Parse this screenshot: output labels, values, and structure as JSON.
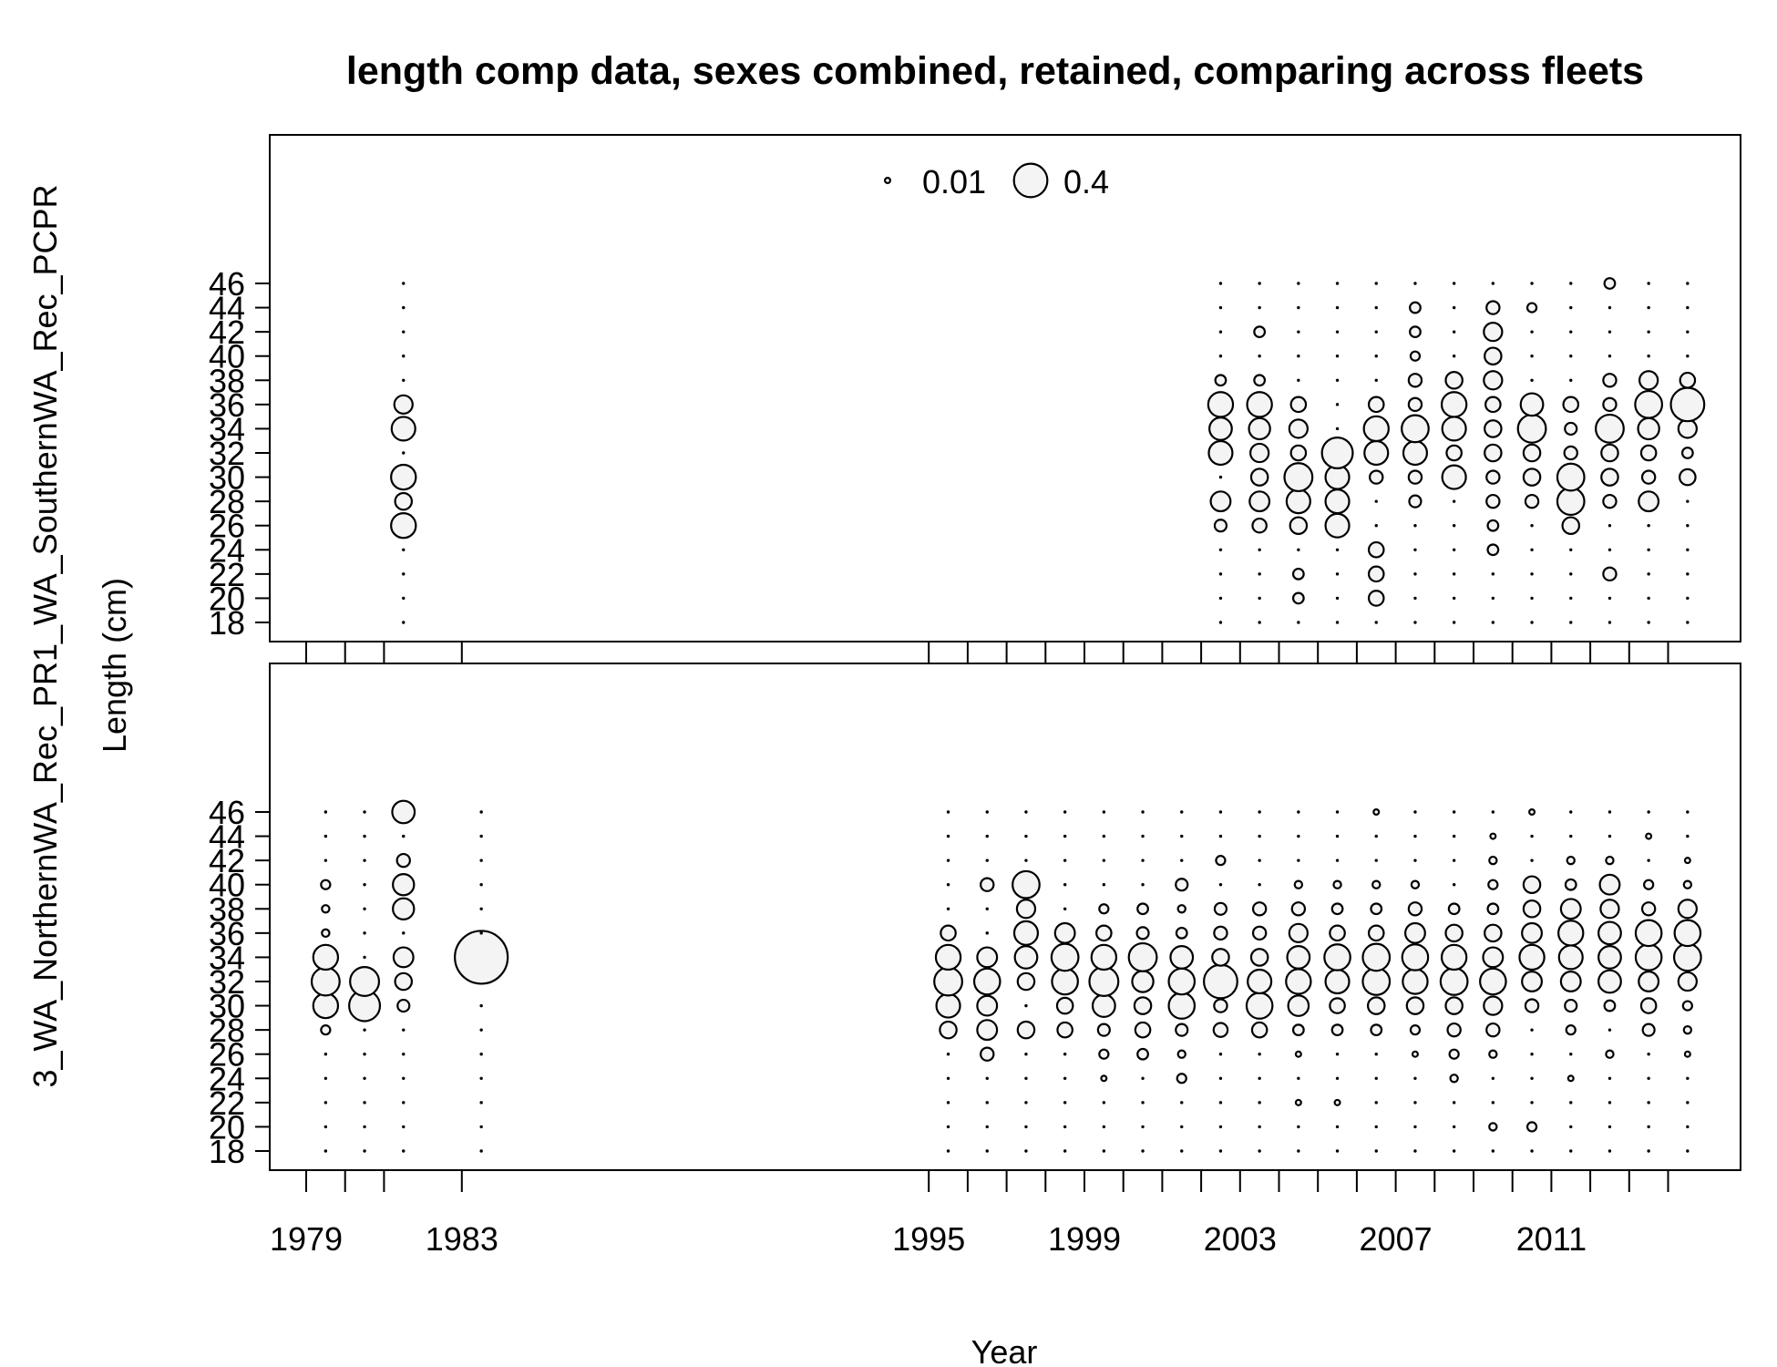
{
  "chart_data": {
    "type": "bubble",
    "title": "length comp data, sexes combined, retained, comparing across fleets",
    "xlabel": "Year",
    "ylabel": "Length (cm)",
    "left_label": "3_WA_NorthernWA_Rec_PR1_WA_SouthernWA_Rec_PCPR",
    "x_ticks": [
      1979,
      1983,
      1995,
      1999,
      2003,
      2007,
      2011
    ],
    "y_ticks": [
      18,
      20,
      22,
      24,
      26,
      28,
      30,
      32,
      34,
      36,
      38,
      40,
      42,
      44,
      46
    ],
    "xlim": [
      1978,
      2015.8
    ],
    "legend": {
      "placement": "top-center",
      "entries": [
        {
          "label": "0.01",
          "value": 0.01
        },
        {
          "label": "0.4",
          "value": 0.4
        }
      ]
    },
    "panels": [
      {
        "name": "WA_SouthernWA_Rec_PCPR",
        "years": [
          {
            "year": 1981.5,
            "p": {
              "26": 0.22,
              "28": 0.1,
              "30": 0.22,
              "34": 0.2,
              "36": 0.12
            }
          },
          {
            "year": 2002.5,
            "p": {
              "26": 0.05,
              "28": 0.14,
              "32": 0.2,
              "34": 0.18,
              "36": 0.22,
              "38": 0.04
            }
          },
          {
            "year": 2003.5,
            "p": {
              "26": 0.07,
              "28": 0.14,
              "30": 0.1,
              "32": 0.12,
              "34": 0.16,
              "36": 0.22,
              "38": 0.04,
              "42": 0.04
            }
          },
          {
            "year": 2004.5,
            "p": {
              "20": 0.04,
              "22": 0.04,
              "26": 0.1,
              "28": 0.2,
              "30": 0.28,
              "32": 0.08,
              "34": 0.12,
              "36": 0.08
            }
          },
          {
            "year": 2005.5,
            "p": {
              "26": 0.2,
              "28": 0.2,
              "30": 0.2,
              "32": 0.34
            }
          },
          {
            "year": 2006.5,
            "p": {
              "20": 0.08,
              "22": 0.08,
              "24": 0.08,
              "30": 0.06,
              "32": 0.2,
              "34": 0.22,
              "36": 0.08
            }
          },
          {
            "year": 2007.5,
            "p": {
              "28": 0.05,
              "30": 0.06,
              "32": 0.2,
              "34": 0.26,
              "36": 0.06,
              "38": 0.06,
              "40": 0.03,
              "42": 0.04,
              "44": 0.04
            }
          },
          {
            "year": 2008.5,
            "p": {
              "30": 0.2,
              "32": 0.08,
              "34": 0.2,
              "36": 0.22,
              "38": 0.1
            }
          },
          {
            "year": 2009.5,
            "p": {
              "24": 0.04,
              "26": 0.04,
              "28": 0.06,
              "30": 0.06,
              "32": 0.1,
              "34": 0.1,
              "36": 0.08,
              "38": 0.12,
              "40": 0.1,
              "42": 0.12,
              "44": 0.06
            }
          },
          {
            "year": 2010.5,
            "p": {
              "28": 0.06,
              "30": 0.1,
              "32": 0.1,
              "34": 0.28,
              "36": 0.18,
              "44": 0.03
            }
          },
          {
            "year": 2011.5,
            "p": {
              "26": 0.1,
              "28": 0.26,
              "30": 0.26,
              "32": 0.06,
              "34": 0.05,
              "36": 0.08
            }
          },
          {
            "year": 2012.5,
            "p": {
              "22": 0.06,
              "28": 0.06,
              "30": 0.1,
              "32": 0.1,
              "34": 0.28,
              "36": 0.06,
              "38": 0.06,
              "46": 0.04
            }
          },
          {
            "year": 2013.5,
            "p": {
              "28": 0.14,
              "30": 0.06,
              "32": 0.08,
              "34": 0.16,
              "36": 0.26,
              "38": 0.12
            }
          },
          {
            "year": 2014.5,
            "p": {
              "30": 0.09,
              "32": 0.04,
              "34": 0.12,
              "36": 0.4,
              "38": 0.08
            }
          }
        ]
      },
      {
        "name": "3_WA_NorthernWA_Rec_PR1",
        "years": [
          {
            "year": 1979.5,
            "p": {
              "28": 0.03,
              "30": 0.22,
              "32": 0.28,
              "34": 0.22,
              "36": 0.02,
              "38": 0.02,
              "40": 0.03
            }
          },
          {
            "year": 1980.5,
            "p": {
              "30": 0.34,
              "32": 0.3
            }
          },
          {
            "year": 1981.5,
            "p": {
              "30": 0.05,
              "32": 0.1,
              "34": 0.14,
              "38": 0.16,
              "40": 0.16,
              "42": 0.06,
              "46": 0.18
            }
          },
          {
            "year": 1983.5,
            "p": {
              "34": 1.0
            }
          },
          {
            "year": 1995.5,
            "p": {
              "28": 0.1,
              "30": 0.2,
              "32": 0.28,
              "34": 0.22,
              "36": 0.08
            }
          },
          {
            "year": 1996.5,
            "p": {
              "26": 0.06,
              "28": 0.14,
              "30": 0.14,
              "32": 0.24,
              "34": 0.14,
              "40": 0.06
            }
          },
          {
            "year": 1997.5,
            "p": {
              "28": 0.1,
              "32": 0.1,
              "34": 0.18,
              "36": 0.2,
              "38": 0.12,
              "40": 0.26
            }
          },
          {
            "year": 1998.5,
            "p": {
              "28": 0.08,
              "30": 0.09,
              "32": 0.24,
              "34": 0.26,
              "36": 0.14
            }
          },
          {
            "year": 1999.5,
            "p": {
              "24": 0.01,
              "26": 0.03,
              "28": 0.05,
              "30": 0.18,
              "32": 0.3,
              "34": 0.22,
              "36": 0.08,
              "38": 0.03
            }
          },
          {
            "year": 2000.5,
            "p": {
              "26": 0.04,
              "28": 0.08,
              "30": 0.1,
              "32": 0.16,
              "34": 0.28,
              "36": 0.05,
              "38": 0.04
            }
          },
          {
            "year": 2001.5,
            "p": {
              "24": 0.03,
              "26": 0.02,
              "28": 0.05,
              "30": 0.24,
              "32": 0.24,
              "34": 0.18,
              "36": 0.04,
              "38": 0.02,
              "40": 0.05
            }
          },
          {
            "year": 2002.5,
            "p": {
              "28": 0.07,
              "30": 0.06,
              "32": 0.4,
              "34": 0.1,
              "36": 0.06,
              "38": 0.05,
              "42": 0.03
            }
          },
          {
            "year": 2003.5,
            "p": {
              "28": 0.08,
              "30": 0.24,
              "32": 0.2,
              "34": 0.1,
              "36": 0.06,
              "38": 0.06
            }
          },
          {
            "year": 2004.5,
            "p": {
              "22": 0.01,
              "26": 0.01,
              "28": 0.04,
              "30": 0.15,
              "32": 0.22,
              "34": 0.18,
              "36": 0.12,
              "38": 0.06,
              "40": 0.02
            }
          },
          {
            "year": 2005.5,
            "p": {
              "22": 0.01,
              "28": 0.04,
              "30": 0.08,
              "32": 0.2,
              "34": 0.24,
              "36": 0.08,
              "38": 0.04,
              "40": 0.02
            }
          },
          {
            "year": 2006.5,
            "p": {
              "28": 0.04,
              "30": 0.1,
              "32": 0.26,
              "34": 0.26,
              "36": 0.08,
              "38": 0.04,
              "40": 0.02,
              "46": 0.01
            }
          },
          {
            "year": 2007.5,
            "p": {
              "26": 0.01,
              "28": 0.03,
              "30": 0.1,
              "32": 0.22,
              "34": 0.24,
              "36": 0.14,
              "38": 0.06,
              "40": 0.02
            }
          },
          {
            "year": 2008.5,
            "p": {
              "24": 0.02,
              "26": 0.03,
              "28": 0.06,
              "30": 0.1,
              "32": 0.26,
              "34": 0.22,
              "36": 0.1,
              "38": 0.04
            }
          },
          {
            "year": 2009.5,
            "p": {
              "20": 0.02,
              "26": 0.02,
              "28": 0.06,
              "30": 0.12,
              "32": 0.24,
              "34": 0.14,
              "36": 0.1,
              "38": 0.04,
              "40": 0.03,
              "42": 0.02,
              "44": 0.01
            }
          },
          {
            "year": 2010.5,
            "p": {
              "20": 0.03,
              "30": 0.06,
              "32": 0.14,
              "34": 0.22,
              "36": 0.14,
              "38": 0.1,
              "40": 0.1,
              "46": 0.01
            }
          },
          {
            "year": 2011.5,
            "p": {
              "24": 0.01,
              "28": 0.03,
              "30": 0.05,
              "32": 0.14,
              "34": 0.2,
              "36": 0.22,
              "38": 0.14,
              "40": 0.04,
              "42": 0.02
            }
          },
          {
            "year": 2012.5,
            "p": {
              "26": 0.02,
              "30": 0.04,
              "32": 0.18,
              "34": 0.18,
              "36": 0.18,
              "38": 0.12,
              "40": 0.14,
              "42": 0.02
            }
          },
          {
            "year": 2013.5,
            "p": {
              "28": 0.05,
              "30": 0.08,
              "32": 0.14,
              "34": 0.24,
              "36": 0.24,
              "38": 0.06,
              "40": 0.03,
              "44": 0.01
            }
          },
          {
            "year": 2014.5,
            "p": {
              "26": 0.01,
              "28": 0.02,
              "30": 0.03,
              "32": 0.12,
              "34": 0.26,
              "36": 0.24,
              "38": 0.12,
              "40": 0.02,
              "42": 0.01
            }
          }
        ]
      }
    ]
  }
}
